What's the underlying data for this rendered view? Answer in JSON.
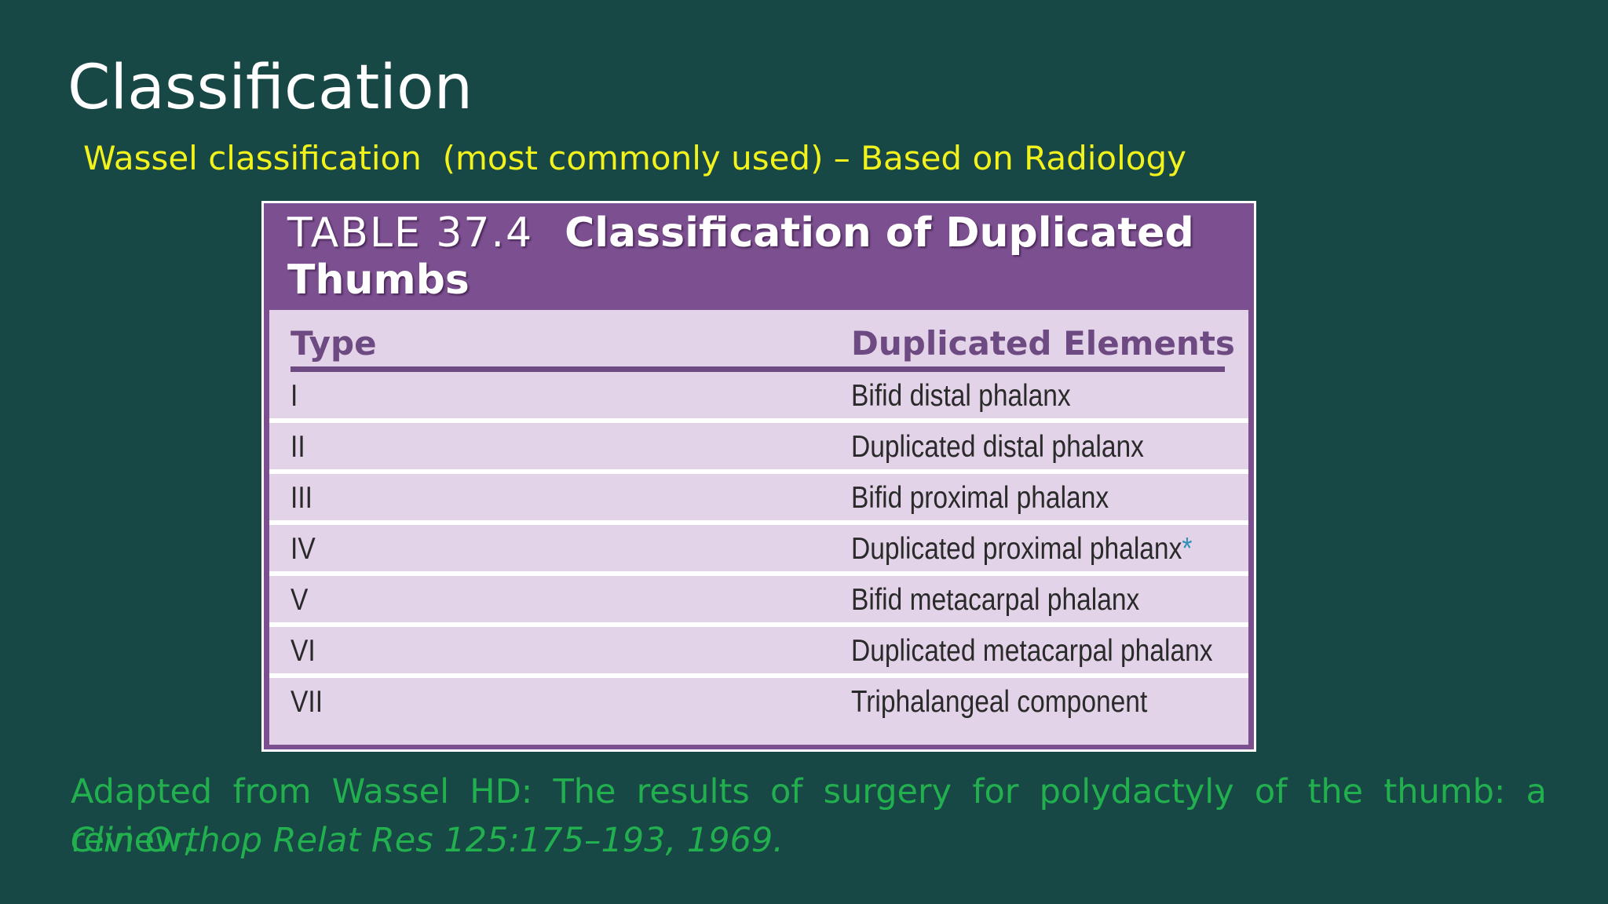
{
  "slide": {
    "title": "Classification",
    "subtitle": "Wassel classification  (most commonly used) – Based on Radiology"
  },
  "table": {
    "label": "TABLE 37.4",
    "title": "Classification of Duplicated Thumbs",
    "headers": {
      "type": "Type",
      "elements": "Duplicated Elements"
    },
    "rows": [
      {
        "type": "I",
        "elements": "Bifid distal phalanx",
        "note": ""
      },
      {
        "type": "II",
        "elements": "Duplicated distal phalanx",
        "note": ""
      },
      {
        "type": "III",
        "elements": "Bifid proximal phalanx",
        "note": ""
      },
      {
        "type": "IV",
        "elements": "Duplicated proximal phalanx",
        "note": "*"
      },
      {
        "type": "V",
        "elements": "Bifid metacarpal phalanx",
        "note": ""
      },
      {
        "type": "VI",
        "elements": "Duplicated metacarpal phalanx",
        "note": ""
      },
      {
        "type": "VII",
        "elements": "Triphalangeal component",
        "note": ""
      }
    ]
  },
  "footnote": {
    "line1": "Adapted from Wassel HD: The results of surgery for polydactyly of the thumb: a review,",
    "line2": "Clin Orthop Relat Res 125:175–193, 1969."
  },
  "colors": {
    "background": "#184846",
    "subtitle": "#f2f21c",
    "table_header": "#7c5090",
    "table_body": "#e3d3e8",
    "footnote": "#22b04e"
  }
}
